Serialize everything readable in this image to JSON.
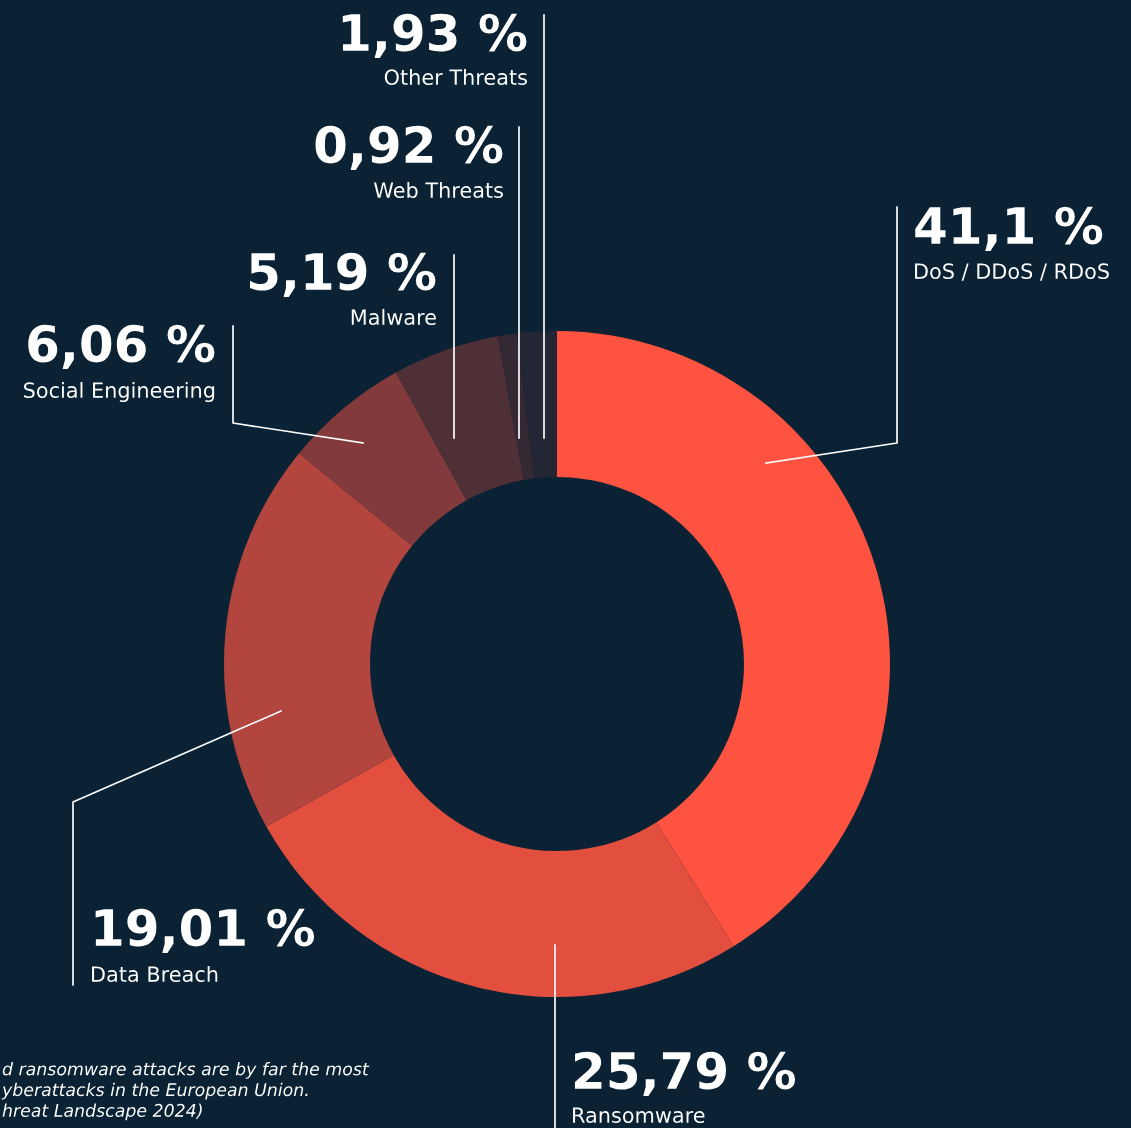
{
  "chart_data": {
    "type": "donut",
    "categories": [
      "DoS / DDoS / RDoS",
      "Ransomware",
      "Data Breach",
      "Social Engineering",
      "Malware",
      "Web Threats",
      "Other Threats"
    ],
    "values": [
      41.1,
      25.79,
      19.01,
      6.06,
      5.19,
      0.92,
      1.93
    ],
    "value_labels": [
      "41,1 %",
      "25,79 %",
      "19,01 %",
      "6,06 %",
      "5,19 %",
      "0,92 %",
      "1,93 %"
    ],
    "colors": [
      "#fe5341",
      "#e24f3f",
      "#b2453e",
      "#823a3c",
      "#4f3036",
      "#342832",
      "#232634"
    ],
    "annotations": [
      "d ransomware attacks are by far the most\nyberattacks in the European Union.\nhreat Landscape 2024)"
    ],
    "legend": false
  }
}
